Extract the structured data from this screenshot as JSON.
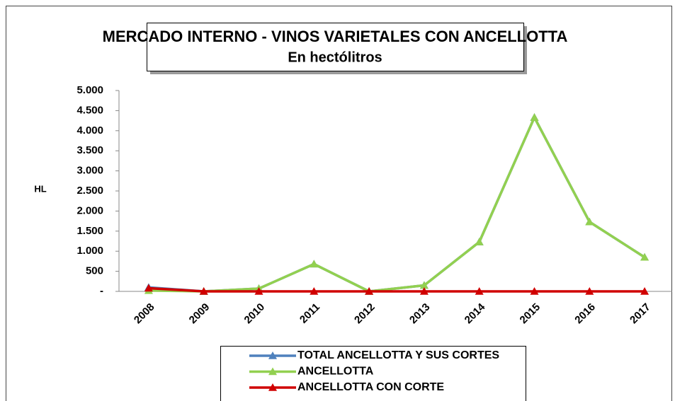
{
  "chart_data": {
    "type": "line",
    "title": "MERCADO INTERNO - VINOS VARIETALES CON ANCELLOTTA",
    "subtitle": "En hectólitros",
    "y_label": "HL",
    "categories": [
      "2008",
      "2009",
      "2010",
      "2011",
      "2012",
      "2013",
      "2014",
      "2015",
      "2016",
      "2017"
    ],
    "series": [
      {
        "name": "TOTAL ANCELLOTTA Y SUS CORTES",
        "color": "#4f81bd",
        "values": [
          100,
          0,
          70,
          680,
          0,
          150,
          1230,
          4330,
          1730,
          850
        ]
      },
      {
        "name": "ANCELLOTTA",
        "color": "#92d050",
        "values": [
          20,
          0,
          70,
          680,
          0,
          150,
          1230,
          4330,
          1730,
          850
        ]
      },
      {
        "name": "ANCELLOTTA  CON CORTE",
        "color": "#d00000",
        "values": [
          80,
          0,
          0,
          0,
          0,
          0,
          0,
          0,
          0,
          0
        ]
      }
    ],
    "ylim": [
      0,
      5000
    ],
    "yticks": [
      {
        "value": 0,
        "label": "-"
      },
      500,
      {
        "value": 1000,
        "label": "1.000"
      },
      {
        "value": 1500,
        "label": "1.500"
      },
      {
        "value": 2000,
        "label": "2.000"
      },
      {
        "value": 2500,
        "label": "2.500"
      },
      {
        "value": 3000,
        "label": "3.000"
      },
      {
        "value": 3500,
        "label": "3.500"
      },
      {
        "value": 4000,
        "label": "4.000"
      },
      {
        "value": 4500,
        "label": "4.500"
      },
      {
        "value": 5000,
        "label": "5.000"
      }
    ],
    "grid": false,
    "legend": "bottom"
  }
}
